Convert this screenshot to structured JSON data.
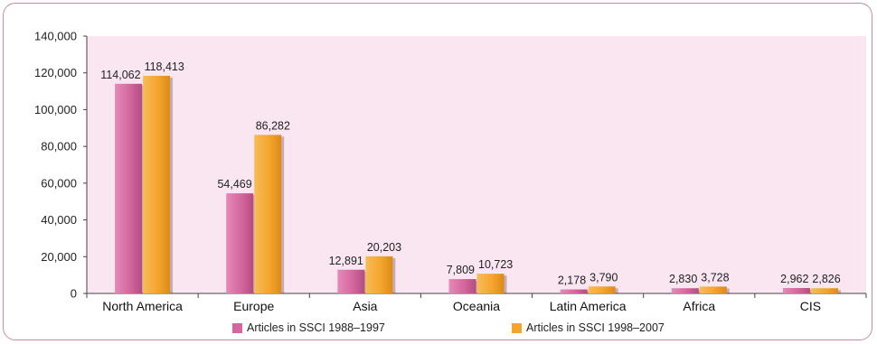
{
  "chart_data": {
    "type": "bar",
    "title": "",
    "xlabel": "",
    "ylabel": "",
    "ylim": [
      0,
      140000
    ],
    "yticks": [
      0,
      20000,
      40000,
      60000,
      80000,
      100000,
      120000,
      140000
    ],
    "ytick_labels": [
      "0",
      "20,000",
      "40,000",
      "60,000",
      "80,000",
      "100,000",
      "120,000",
      "140,000"
    ],
    "grid": false,
    "legend_position": "bottom",
    "categories": [
      "North America",
      "Europe",
      "Asia",
      "Oceania",
      "Latin America",
      "Africa",
      "CIS"
    ],
    "series": [
      {
        "name": "Articles in SSCI 1988–1997",
        "color": "#d4679e",
        "values": [
          114062,
          54469,
          12891,
          7809,
          2178,
          2830,
          2962
        ],
        "labels": [
          "114,062",
          "54,469",
          "12,891",
          "7,809",
          "2,178",
          "2,830",
          "2,962"
        ]
      },
      {
        "name": "Articles in SSCI 1998–2007",
        "color": "#f4a52e",
        "values": [
          118413,
          86282,
          20203,
          10723,
          3790,
          3728,
          2826
        ],
        "labels": [
          "118,413",
          "86,282",
          "20,203",
          "10,723",
          "3,790",
          "3,728",
          "2,826"
        ]
      }
    ],
    "plot_background": "#f9e6f0",
    "frame_color": "#c98aa6"
  }
}
